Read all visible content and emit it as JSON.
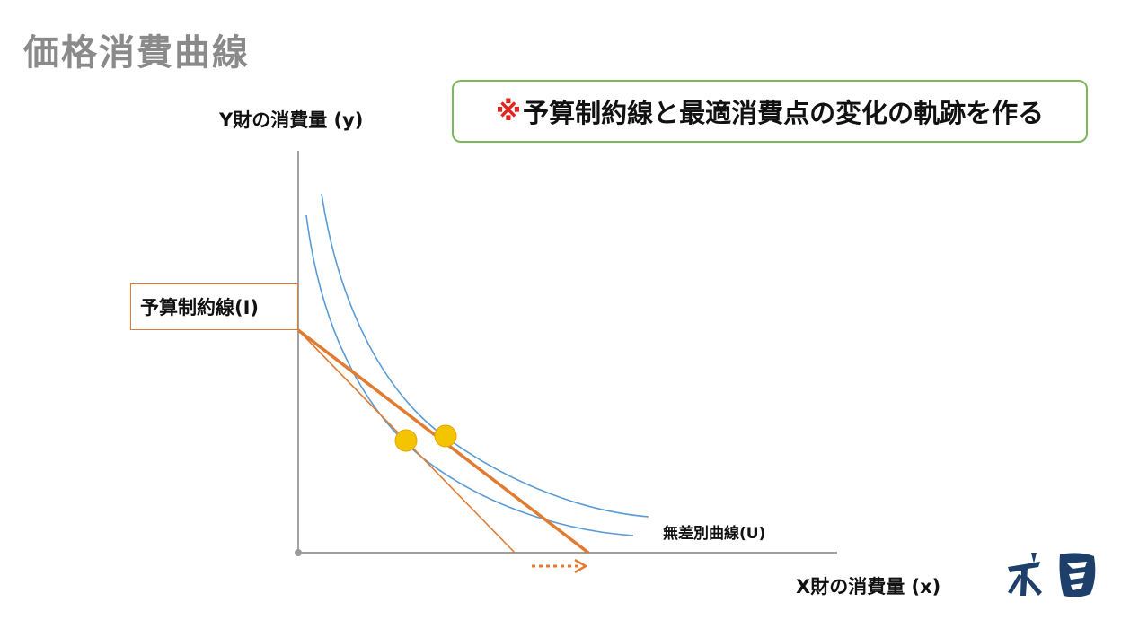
{
  "title": "価格消費曲線",
  "callout": {
    "mark": "※",
    "text": "予算制約線と最適消費点の変化の軌跡を作る"
  },
  "axes": {
    "y_label": "Y財の消費量 (y)",
    "x_label": "X財の消費量 (x)"
  },
  "budget_label": "予算制約線(I)",
  "indifference_label": "無差別曲線(U)",
  "colors": {
    "budget_line": "#e07b2f",
    "indifference_curve": "#5b9bd5",
    "optimum_point": "#f5c400",
    "callout_border": "#7cb85a",
    "callout_mark": "#e8211b",
    "axis": "#555555"
  },
  "icons": {
    "arrow": "dotted-right-arrow",
    "logo": "brand-logo"
  }
}
